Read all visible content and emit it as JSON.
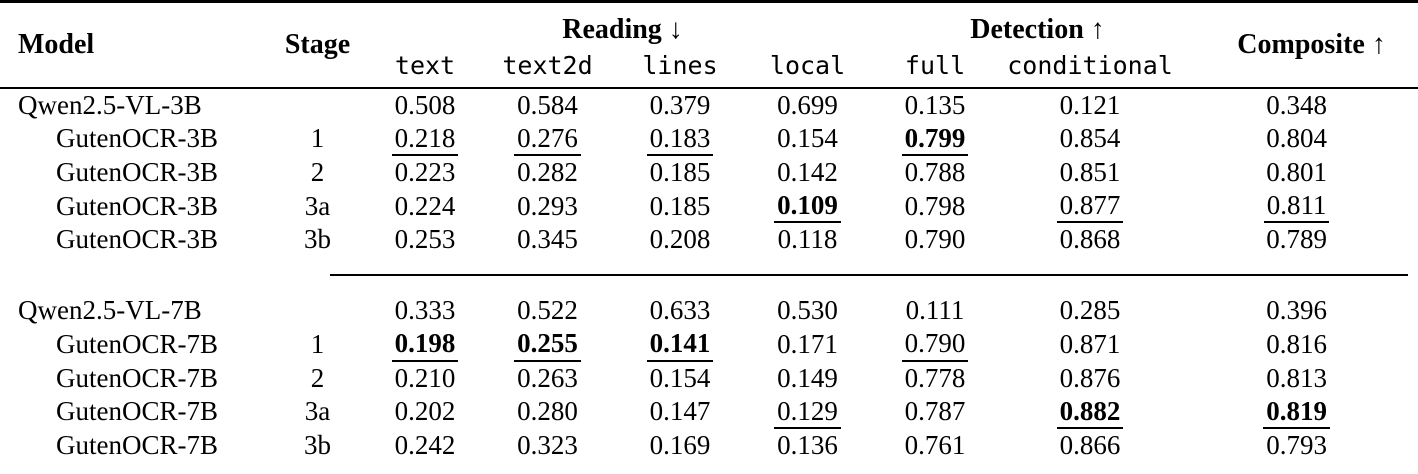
{
  "colors": {
    "text": "#000000",
    "background": "#ffffff",
    "rule": "#000000"
  },
  "header": {
    "model": "Model",
    "stage": "Stage",
    "reading": "Reading ↓",
    "detection": "Detection ↑",
    "composite": "Composite ↑",
    "subcolumns": [
      "text",
      "text2d",
      "lines",
      "local",
      "full",
      "conditional"
    ]
  },
  "rows": [
    {
      "group": "3B",
      "model": "Qwen2.5-VL-3B",
      "stage": "",
      "indent": false,
      "cells": [
        {
          "v": "0.508",
          "s": ""
        },
        {
          "v": "0.584",
          "s": ""
        },
        {
          "v": "0.379",
          "s": ""
        },
        {
          "v": "0.699",
          "s": ""
        },
        {
          "v": "0.135",
          "s": ""
        },
        {
          "v": "0.121",
          "s": ""
        },
        {
          "v": "0.348",
          "s": ""
        }
      ]
    },
    {
      "group": "3B",
      "model": "GutenOCR-3B",
      "stage": "1",
      "indent": true,
      "cells": [
        {
          "v": "0.218",
          "s": "u"
        },
        {
          "v": "0.276",
          "s": "u"
        },
        {
          "v": "0.183",
          "s": "u"
        },
        {
          "v": "0.154",
          "s": ""
        },
        {
          "v": "0.799",
          "s": "bu"
        },
        {
          "v": "0.854",
          "s": ""
        },
        {
          "v": "0.804",
          "s": ""
        }
      ]
    },
    {
      "group": "3B",
      "model": "GutenOCR-3B",
      "stage": "2",
      "indent": true,
      "cells": [
        {
          "v": "0.223",
          "s": ""
        },
        {
          "v": "0.282",
          "s": ""
        },
        {
          "v": "0.185",
          "s": ""
        },
        {
          "v": "0.142",
          "s": ""
        },
        {
          "v": "0.788",
          "s": ""
        },
        {
          "v": "0.851",
          "s": ""
        },
        {
          "v": "0.801",
          "s": ""
        }
      ]
    },
    {
      "group": "3B",
      "model": "GutenOCR-3B",
      "stage": "3a",
      "indent": true,
      "cells": [
        {
          "v": "0.224",
          "s": ""
        },
        {
          "v": "0.293",
          "s": ""
        },
        {
          "v": "0.185",
          "s": ""
        },
        {
          "v": "0.109",
          "s": "bu"
        },
        {
          "v": "0.798",
          "s": ""
        },
        {
          "v": "0.877",
          "s": "u"
        },
        {
          "v": "0.811",
          "s": "u"
        }
      ]
    },
    {
      "group": "3B",
      "model": "GutenOCR-3B",
      "stage": "3b",
      "indent": true,
      "cells": [
        {
          "v": "0.253",
          "s": ""
        },
        {
          "v": "0.345",
          "s": ""
        },
        {
          "v": "0.208",
          "s": ""
        },
        {
          "v": "0.118",
          "s": ""
        },
        {
          "v": "0.790",
          "s": ""
        },
        {
          "v": "0.868",
          "s": ""
        },
        {
          "v": "0.789",
          "s": ""
        }
      ]
    },
    {
      "group": "7B",
      "model": "Qwen2.5-VL-7B",
      "stage": "",
      "indent": false,
      "cells": [
        {
          "v": "0.333",
          "s": ""
        },
        {
          "v": "0.522",
          "s": ""
        },
        {
          "v": "0.633",
          "s": ""
        },
        {
          "v": "0.530",
          "s": ""
        },
        {
          "v": "0.111",
          "s": ""
        },
        {
          "v": "0.285",
          "s": ""
        },
        {
          "v": "0.396",
          "s": ""
        }
      ]
    },
    {
      "group": "7B",
      "model": "GutenOCR-7B",
      "stage": "1",
      "indent": true,
      "cells": [
        {
          "v": "0.198",
          "s": "bu"
        },
        {
          "v": "0.255",
          "s": "bu"
        },
        {
          "v": "0.141",
          "s": "bu"
        },
        {
          "v": "0.171",
          "s": ""
        },
        {
          "v": "0.790",
          "s": "u"
        },
        {
          "v": "0.871",
          "s": ""
        },
        {
          "v": "0.816",
          "s": ""
        }
      ]
    },
    {
      "group": "7B",
      "model": "GutenOCR-7B",
      "stage": "2",
      "indent": true,
      "cells": [
        {
          "v": "0.210",
          "s": ""
        },
        {
          "v": "0.263",
          "s": ""
        },
        {
          "v": "0.154",
          "s": ""
        },
        {
          "v": "0.149",
          "s": ""
        },
        {
          "v": "0.778",
          "s": ""
        },
        {
          "v": "0.876",
          "s": ""
        },
        {
          "v": "0.813",
          "s": ""
        }
      ]
    },
    {
      "group": "7B",
      "model": "GutenOCR-7B",
      "stage": "3a",
      "indent": true,
      "cells": [
        {
          "v": "0.202",
          "s": ""
        },
        {
          "v": "0.280",
          "s": ""
        },
        {
          "v": "0.147",
          "s": ""
        },
        {
          "v": "0.129",
          "s": "u"
        },
        {
          "v": "0.787",
          "s": ""
        },
        {
          "v": "0.882",
          "s": "bu"
        },
        {
          "v": "0.819",
          "s": "bu"
        }
      ]
    },
    {
      "group": "7B",
      "model": "GutenOCR-7B",
      "stage": "3b",
      "indent": true,
      "cells": [
        {
          "v": "0.242",
          "s": ""
        },
        {
          "v": "0.323",
          "s": ""
        },
        {
          "v": "0.169",
          "s": ""
        },
        {
          "v": "0.136",
          "s": ""
        },
        {
          "v": "0.761",
          "s": ""
        },
        {
          "v": "0.866",
          "s": ""
        },
        {
          "v": "0.793",
          "s": ""
        }
      ]
    }
  ]
}
